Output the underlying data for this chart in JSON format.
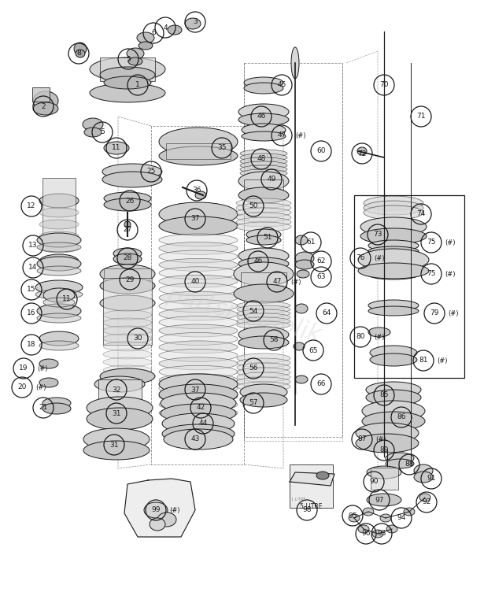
{
  "bg_color": "#ffffff",
  "line_color": "#1a1a1a",
  "text_color": "#1a1a1a",
  "watermark": "partsrepublik",
  "fig_w": 6.15,
  "fig_h": 7.52,
  "dpi": 100,
  "labels": [
    [
      "1",
      175,
      108,
      false
    ],
    [
      "2",
      55,
      135,
      false
    ],
    [
      "3",
      248,
      28,
      false
    ],
    [
      "4",
      210,
      35,
      false
    ],
    [
      "5",
      163,
      75,
      false
    ],
    [
      "5",
      130,
      168,
      false
    ],
    [
      "6",
      195,
      42,
      false
    ],
    [
      "8",
      100,
      68,
      false
    ],
    [
      "11",
      148,
      188,
      false
    ],
    [
      "11",
      85,
      380,
      false
    ],
    [
      "12",
      40,
      262,
      false
    ],
    [
      "13",
      42,
      312,
      false
    ],
    [
      "14",
      42,
      340,
      false
    ],
    [
      "15",
      40,
      368,
      false
    ],
    [
      "16",
      40,
      398,
      false
    ],
    [
      "18",
      40,
      438,
      false
    ],
    [
      "19",
      30,
      468,
      true
    ],
    [
      "20",
      28,
      492,
      true
    ],
    [
      "21",
      55,
      518,
      false
    ],
    [
      "25",
      192,
      218,
      false
    ],
    [
      "26",
      165,
      255,
      false
    ],
    [
      "27",
      162,
      292,
      false
    ],
    [
      "28",
      162,
      328,
      false
    ],
    [
      "29",
      165,
      355,
      false
    ],
    [
      "30",
      175,
      430,
      false
    ],
    [
      "31",
      148,
      525,
      false
    ],
    [
      "31",
      145,
      565,
      false
    ],
    [
      "32",
      148,
      495,
      false
    ],
    [
      "35",
      282,
      188,
      false
    ],
    [
      "36",
      250,
      242,
      false
    ],
    [
      "37",
      248,
      278,
      false
    ],
    [
      "37",
      248,
      495,
      false
    ],
    [
      "40",
      248,
      358,
      false
    ],
    [
      "42",
      255,
      518,
      false
    ],
    [
      "43",
      248,
      558,
      false
    ],
    [
      "44",
      258,
      538,
      false
    ],
    [
      "45",
      358,
      108,
      false
    ],
    [
      "46",
      332,
      148,
      false
    ],
    [
      "47",
      358,
      172,
      true
    ],
    [
      "48",
      332,
      202,
      false
    ],
    [
      "49",
      345,
      228,
      false
    ],
    [
      "50",
      322,
      262,
      false
    ],
    [
      "51",
      340,
      302,
      false
    ],
    [
      "46",
      328,
      332,
      false
    ],
    [
      "47",
      352,
      358,
      true
    ],
    [
      "54",
      322,
      395,
      false
    ],
    [
      "58",
      348,
      432,
      false
    ],
    [
      "56",
      322,
      468,
      false
    ],
    [
      "57",
      322,
      512,
      false
    ],
    [
      "60",
      408,
      192,
      false
    ],
    [
      "61",
      395,
      308,
      false
    ],
    [
      "62",
      408,
      332,
      false
    ],
    [
      "63",
      408,
      352,
      false
    ],
    [
      "64",
      415,
      398,
      false
    ],
    [
      "65",
      398,
      445,
      false
    ],
    [
      "66",
      408,
      488,
      false
    ],
    [
      "70",
      488,
      108,
      false
    ],
    [
      "71",
      535,
      148,
      false
    ],
    [
      "72",
      460,
      195,
      false
    ],
    [
      "73",
      480,
      298,
      false
    ],
    [
      "74",
      535,
      272,
      false
    ],
    [
      "75",
      548,
      308,
      true
    ],
    [
      "75",
      548,
      348,
      true
    ],
    [
      "76",
      458,
      328,
      true
    ],
    [
      "79",
      552,
      398,
      true
    ],
    [
      "80",
      458,
      428,
      true
    ],
    [
      "81",
      538,
      458,
      true
    ],
    [
      "85",
      488,
      502,
      false
    ],
    [
      "86",
      510,
      530,
      false
    ],
    [
      "87",
      460,
      558,
      true
    ],
    [
      "88",
      520,
      590,
      false
    ],
    [
      "89",
      488,
      572,
      false
    ],
    [
      "90",
      475,
      612,
      false
    ],
    [
      "91",
      548,
      608,
      false
    ],
    [
      "92",
      542,
      638,
      false
    ],
    [
      "93",
      485,
      678,
      false
    ],
    [
      "94",
      510,
      658,
      false
    ],
    [
      "95",
      448,
      655,
      false
    ],
    [
      "96",
      465,
      678,
      false
    ],
    [
      "97",
      482,
      635,
      false
    ],
    [
      "98",
      390,
      648,
      false
    ],
    [
      "99",
      198,
      648,
      true
    ]
  ]
}
